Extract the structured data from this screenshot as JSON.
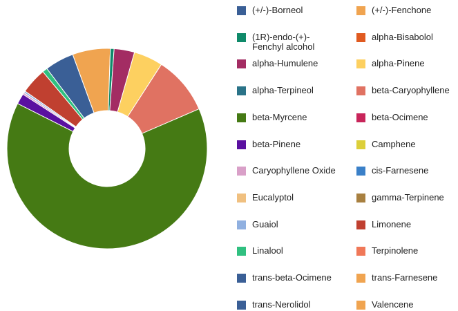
{
  "chart_data": {
    "type": "donut",
    "categories": [
      "(+/-)-Borneol",
      "(+/-)-Fenchone",
      "(1R)-endo-(+)-Fenchyl alcohol",
      "alpha-Bisabolol",
      "alpha-Humulene",
      "alpha-Pinene",
      "alpha-Terpineol",
      "beta-Caryophyllene",
      "beta-Myrcene",
      "beta-Ocimene",
      "beta-Pinene",
      "Camphene",
      "Caryophyllene Oxide",
      "cis-Farnesene",
      "Eucalyptol",
      "gamma-Terpinene",
      "Guaiol",
      "Limonene",
      "Linalool",
      "Terpinolene",
      "trans-beta-Ocimene",
      "trans-Farnesene",
      "trans-Nerolidol",
      "Valencene"
    ],
    "values": [
      4.7,
      6.1,
      0.6,
      0,
      3.3,
      4.7,
      0,
      9.4,
      63.9,
      0,
      1.7,
      0,
      0.3,
      0,
      0,
      0,
      0.3,
      4.2,
      0.8,
      0,
      0,
      0,
      0,
      0
    ],
    "colors": [
      "#3a5f96",
      "#f0a450",
      "#0f8a6a",
      "#e05a20",
      "#a32c63",
      "#fdd060",
      "#2a7388",
      "#e07262",
      "#457a14",
      "#c8255a",
      "#5a10a0",
      "#dccf3a",
      "#d9a0c8",
      "#3a80c8",
      "#f0c080",
      "#a88040",
      "#90b0e0",
      "#c04030",
      "#30c080",
      "#f07858",
      "#3a5f96",
      "#f0a450",
      "#3a5f96",
      "#f0a450"
    ],
    "legend": "right"
  }
}
